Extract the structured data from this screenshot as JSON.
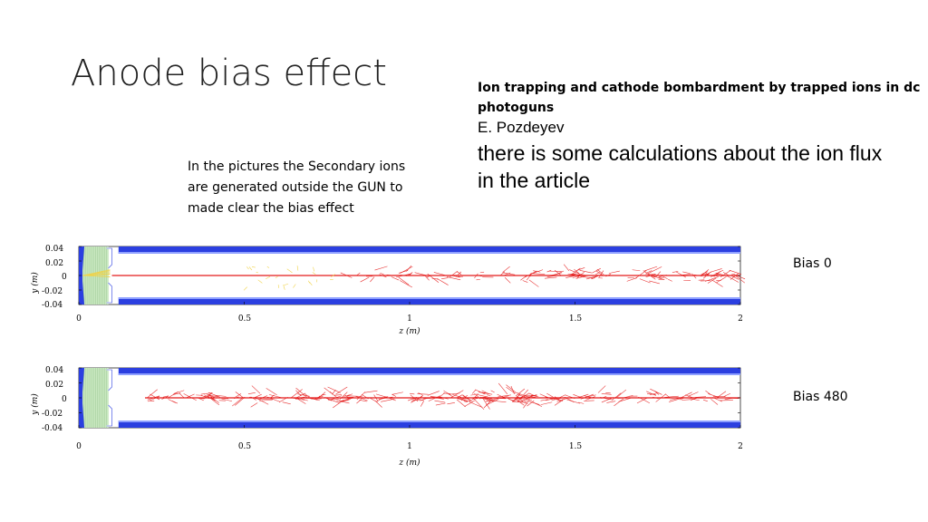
{
  "slide": {
    "title": "Anode bias effect",
    "reference": {
      "title": "Ion trapping and cathode bombardment by trapped ions in dc photoguns",
      "author": "E. Pozdeyev",
      "note": "there is some calculations about the ion flux in the article"
    },
    "note": "In the pictures the Secondary ions are generated outside the GUN to made clear the bias effect"
  },
  "chart_data": [
    {
      "type": "scatter",
      "label": "Bias 0",
      "xlabel": "z (m)",
      "ylabel": "y (m)",
      "xlim": [
        0,
        2
      ],
      "ylim": [
        -0.04,
        0.04
      ],
      "x_ticks": [
        "0",
        "0.5",
        "1",
        "1.5",
        "2"
      ],
      "y_ticks": [
        "0.04",
        "0.02",
        "0",
        "-0.02",
        "-0.04"
      ],
      "ion_track_start_z": 0.1,
      "colors": {
        "electrode": "#2b3fe0",
        "gun": "#c9e8c0",
        "ions": "#e41a1a",
        "trace": "#f0d34a"
      }
    },
    {
      "type": "scatter",
      "label": "Bias 480",
      "xlabel": "z (m)",
      "ylabel": "y (m)",
      "xlim": [
        0,
        2
      ],
      "ylim": [
        -0.04,
        0.04
      ],
      "x_ticks": [
        "0",
        "0.5",
        "1",
        "1.5",
        "2"
      ],
      "y_ticks": [
        "0.04",
        "0.02",
        "0",
        "-0.02",
        "-0.04"
      ],
      "ion_track_start_z": 0.2,
      "colors": {
        "electrode": "#2b3fe0",
        "gun": "#c9e8c0",
        "ions": "#e41a1a"
      }
    }
  ]
}
